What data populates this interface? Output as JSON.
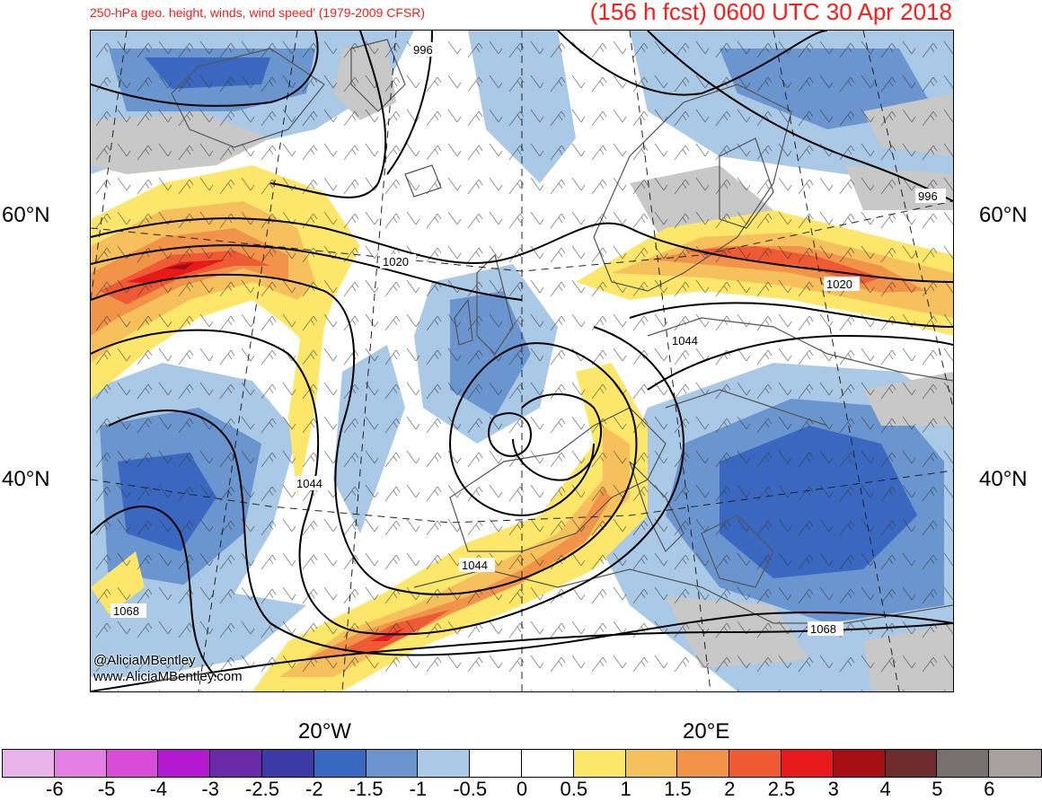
{
  "header": {
    "subtitle": "250-hPa geo. height, winds, wind speed’ (1979-2009 CFSR)",
    "valid_time": "(156 h fcst) 0600 UTC 30 Apr 2018"
  },
  "axes": {
    "lat_left": [
      "60°N",
      "40°N"
    ],
    "lat_right": [
      "60°N",
      "40°N"
    ],
    "lon_bottom": [
      "20°W",
      "20°E"
    ]
  },
  "contour_labels": [
    "996",
    "1020",
    "1044",
    "1068",
    "996",
    "1020",
    "1044",
    "1044",
    "1068"
  ],
  "credits": {
    "twitter": "@AliciaMBentley",
    "website": "www.AliciaMBentley.com"
  },
  "colorbar": {
    "colors": [
      "#e8b3e8",
      "#e57ee5",
      "#d94bd9",
      "#b219d1",
      "#6a2aa8",
      "#3a3ba6",
      "#3a68c0",
      "#6b95cf",
      "#a9c9e6",
      "#ffffff",
      "#ffffff",
      "#fde76b",
      "#f6c05c",
      "#f2934a",
      "#ee5a34",
      "#e8191b",
      "#a50e12",
      "#6e2c2c",
      "#78706e",
      "#a8a0a0"
    ],
    "labels": [
      "-6",
      "-5",
      "-4",
      "-3",
      "-2.5",
      "-2",
      "-1.5",
      "-1",
      "-0.5",
      "0",
      "0.5",
      "1",
      "1.5",
      "2",
      "2.5",
      "3",
      "4",
      "5",
      "6"
    ]
  }
}
